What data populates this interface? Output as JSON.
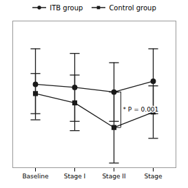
{
  "chart_data": {
    "type": "line",
    "categories": [
      "Baseline",
      "Stage I",
      "Stage II",
      "Stage"
    ],
    "series": [
      {
        "name": "ITB group",
        "color": "#1a1a1a",
        "marker": "circle",
        "values": [
          3.9,
          3.7,
          3.4,
          4.1
        ],
        "errors": [
          2.3,
          2.2,
          1.9,
          2.1
        ]
      },
      {
        "name": "Control group",
        "color": "#1a1a1a",
        "marker": "square",
        "values": [
          3.3,
          2.7,
          1.1,
          2.1
        ],
        "errors": [
          1.3,
          1.8,
          2.3,
          1.7
        ]
      }
    ],
    "annotations": [
      {
        "text": "* P = 0.001",
        "category": "Stage II"
      }
    ],
    "ylim": [
      -1.5,
      8.0
    ],
    "tick_labels": "x",
    "legend": "top",
    "grid": false
  }
}
